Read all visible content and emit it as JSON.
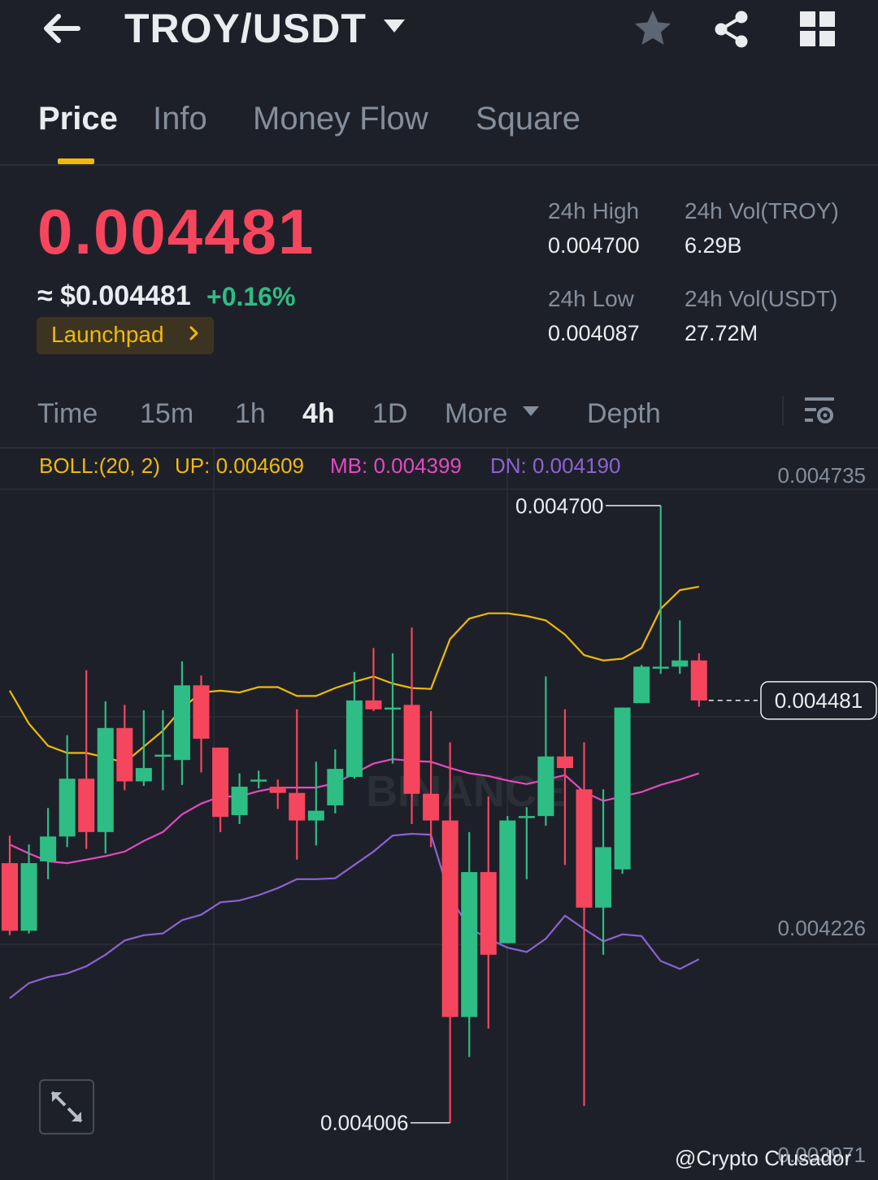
{
  "header": {
    "pair": "TROY/USDT",
    "icons": [
      "back-arrow-icon",
      "chevron-down-icon",
      "star-icon",
      "share-icon",
      "grid-icon"
    ]
  },
  "tabs": [
    "Price",
    "Info",
    "Money Flow",
    "Square"
  ],
  "active_tab": "Price",
  "ticker": {
    "last_price": "0.004481",
    "usd_price": "≈ $0.004481",
    "change": "+0.16%",
    "launchpad": "Launchpad",
    "high_label": "24h High",
    "high": "0.004700",
    "low_label": "24h Low",
    "low": "0.004087",
    "vol_base_label": "24h Vol(TROY)",
    "vol_base": "6.29B",
    "vol_quote_label": "24h Vol(USDT)",
    "vol_quote": "27.72M"
  },
  "intervals": {
    "time": "Time",
    "m15": "15m",
    "h1": "1h",
    "h4": "4h",
    "d1": "1D",
    "more": "More",
    "depth": "Depth"
  },
  "indicator": {
    "name": "BOLL:(20, 2)",
    "up": "UP: 0.004609",
    "mb": "MB: 0.004399",
    "dn": "DN: 0.004190"
  },
  "colors": {
    "up": "#2ebd85",
    "down": "#f6465d",
    "accent": "#f0b90b",
    "boll_up": "#f0b90b",
    "boll_mb": "#e44ac0",
    "boll_dn": "#8c63d4",
    "background": "#1e2029"
  },
  "chart_data": {
    "type": "candlestick",
    "interval": "4h",
    "y_range": [
      0.00397,
      0.004735
    ],
    "y_ticks": [
      "0.004735",
      "0.004480",
      "0.004226",
      "0.003971"
    ],
    "current_price": "0.004481",
    "max_label": "0.004700",
    "min_label": "0.004006",
    "candles": [
      {
        "o": 0.004298,
        "h": 0.004329,
        "l": 0.004217,
        "c": 0.004222
      },
      {
        "o": 0.004222,
        "h": 0.004319,
        "l": 0.004219,
        "c": 0.004298
      },
      {
        "o": 0.0043,
        "h": 0.00436,
        "l": 0.00428,
        "c": 0.004328
      },
      {
        "o": 0.004328,
        "h": 0.004442,
        "l": 0.004316,
        "c": 0.004393
      },
      {
        "o": 0.004393,
        "h": 0.004515,
        "l": 0.004314,
        "c": 0.004333
      },
      {
        "o": 0.004333,
        "h": 0.00448,
        "l": 0.004309,
        "c": 0.00445
      },
      {
        "o": 0.00445,
        "h": 0.004476,
        "l": 0.00438,
        "c": 0.00439
      },
      {
        "o": 0.00439,
        "h": 0.00447,
        "l": 0.004385,
        "c": 0.004405
      },
      {
        "o": 0.00442,
        "h": 0.00447,
        "l": 0.00438,
        "c": 0.00442
      },
      {
        "o": 0.004414,
        "h": 0.004525,
        "l": 0.004386,
        "c": 0.004498
      },
      {
        "o": 0.004498,
        "h": 0.004509,
        "l": 0.0044,
        "c": 0.004438
      },
      {
        "o": 0.004428,
        "h": 0.004428,
        "l": 0.004333,
        "c": 0.00435
      },
      {
        "o": 0.004352,
        "h": 0.004399,
        "l": 0.004342,
        "c": 0.004384
      },
      {
        "o": 0.004392,
        "h": 0.004402,
        "l": 0.004382,
        "c": 0.004392
      },
      {
        "o": 0.004384,
        "h": 0.004392,
        "l": 0.004359,
        "c": 0.004377
      },
      {
        "o": 0.004377,
        "h": 0.004471,
        "l": 0.004302,
        "c": 0.004346
      },
      {
        "o": 0.004346,
        "h": 0.004412,
        "l": 0.004318,
        "c": 0.004357
      },
      {
        "o": 0.004363,
        "h": 0.004426,
        "l": 0.004354,
        "c": 0.004404
      },
      {
        "o": 0.004395,
        "h": 0.004513,
        "l": 0.004393,
        "c": 0.004481
      },
      {
        "o": 0.004481,
        "h": 0.00454,
        "l": 0.004469,
        "c": 0.004471
      },
      {
        "o": 0.004473,
        "h": 0.004534,
        "l": 0.00441,
        "c": 0.004473
      },
      {
        "o": 0.004476,
        "h": 0.004563,
        "l": 0.004342,
        "c": 0.004376
      },
      {
        "o": 0.004376,
        "h": 0.004469,
        "l": 0.004316,
        "c": 0.004346
      },
      {
        "o": 0.004346,
        "h": 0.004434,
        "l": 0.004006,
        "c": 0.004125
      },
      {
        "o": 0.004125,
        "h": 0.004333,
        "l": 0.00408,
        "c": 0.004288
      },
      {
        "o": 0.004288,
        "h": 0.004373,
        "l": 0.004112,
        "c": 0.004195
      },
      {
        "o": 0.004208,
        "h": 0.004351,
        "l": 0.004208,
        "c": 0.004346
      },
      {
        "o": 0.004351,
        "h": 0.004361,
        "l": 0.00428,
        "c": 0.004351
      },
      {
        "o": 0.004351,
        "h": 0.004508,
        "l": 0.00434,
        "c": 0.004418
      },
      {
        "o": 0.004418,
        "h": 0.004471,
        "l": 0.004296,
        "c": 0.004405
      },
      {
        "o": 0.004381,
        "h": 0.004434,
        "l": 0.004025,
        "c": 0.004248
      },
      {
        "o": 0.004248,
        "h": 0.004381,
        "l": 0.004195,
        "c": 0.004316
      },
      {
        "o": 0.004291,
        "h": 0.004473,
        "l": 0.004286,
        "c": 0.004473
      },
      {
        "o": 0.004478,
        "h": 0.004521,
        "l": 0.004478,
        "c": 0.004519
      },
      {
        "o": 0.004519,
        "h": 0.0047,
        "l": 0.004511,
        "c": 0.004519
      },
      {
        "o": 0.004519,
        "h": 0.004571,
        "l": 0.004511,
        "c": 0.004526
      },
      {
        "o": 0.004526,
        "h": 0.004534,
        "l": 0.004474,
        "c": 0.004481
      }
    ],
    "boll_up": [
      0.004492,
      0.004455,
      0.00443,
      0.004422,
      0.004422,
      0.004417,
      0.004411,
      0.004429,
      0.004447,
      0.004472,
      0.00449,
      0.004492,
      0.00449,
      0.004496,
      0.004496,
      0.004486,
      0.004486,
      0.004495,
      0.004502,
      0.004508,
      0.0045,
      0.004495,
      0.004494,
      0.00455,
      0.004573,
      0.004579,
      0.004579,
      0.004576,
      0.004571,
      0.004555,
      0.004532,
      0.004526,
      0.004528,
      0.00454,
      0.004584,
      0.004605,
      0.004609
    ],
    "boll_mb": [
      0.004319,
      0.004309,
      0.0043,
      0.004298,
      0.004302,
      0.004306,
      0.004311,
      0.004323,
      0.004333,
      0.004353,
      0.004365,
      0.004373,
      0.004373,
      0.004379,
      0.004383,
      0.004383,
      0.004383,
      0.004388,
      0.004399,
      0.00441,
      0.004415,
      0.004413,
      0.004412,
      0.004405,
      0.004399,
      0.004396,
      0.004391,
      0.004387,
      0.004392,
      0.004397,
      0.004378,
      0.004368,
      0.004373,
      0.004378,
      0.004386,
      0.004392,
      0.004399
    ],
    "boll_dn": [
      0.004146,
      0.004163,
      0.00417,
      0.004174,
      0.004182,
      0.004195,
      0.004211,
      0.004217,
      0.004219,
      0.004234,
      0.00424,
      0.004254,
      0.004256,
      0.004262,
      0.00427,
      0.00428,
      0.00428,
      0.004281,
      0.004296,
      0.004311,
      0.004329,
      0.004331,
      0.00433,
      0.00426,
      0.004225,
      0.004213,
      0.004203,
      0.004198,
      0.004213,
      0.004239,
      0.004224,
      0.00421,
      0.004218,
      0.004216,
      0.004188,
      0.004179,
      0.00419
    ]
  },
  "watermark": "@Crypto Crusador"
}
